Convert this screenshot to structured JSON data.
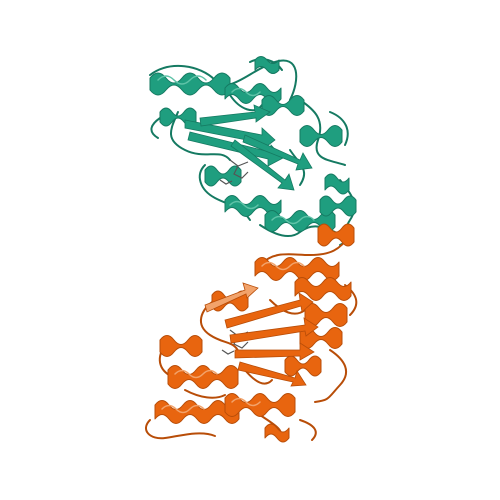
{
  "image": {
    "subject": "protein-structure-ribbon-render",
    "background": "#ffffff",
    "chains": [
      {
        "id": "chain-a",
        "color": "#1f9e7f",
        "shade": "#157a62",
        "light": "#5fc3a8"
      },
      {
        "id": "chain-b",
        "color": "#e8650f",
        "shade": "#b84d08",
        "light": "#f2a36b"
      }
    ],
    "ligand_color": "#555555"
  }
}
